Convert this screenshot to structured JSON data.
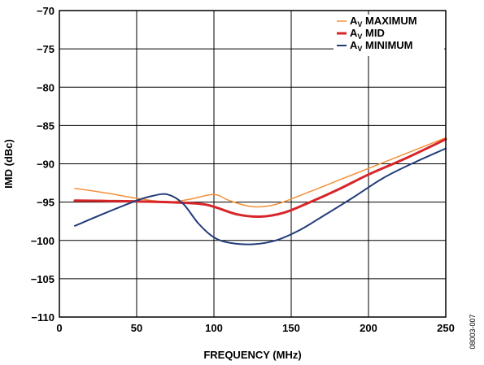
{
  "chart_data": {
    "type": "line",
    "title": "",
    "xlabel": "FREQUENCY (MHz)",
    "ylabel": "IMD (dBc)",
    "xlim": [
      0,
      250
    ],
    "ylim": [
      -110,
      -70
    ],
    "x_ticks": [
      0,
      50,
      100,
      150,
      200,
      250
    ],
    "x_tick_labels": [
      "0",
      "50",
      "100",
      "150",
      "200",
      "250"
    ],
    "y_ticks": [
      -110,
      -105,
      -100,
      -95,
      -90,
      -85,
      -80,
      -75,
      -70
    ],
    "y_tick_labels": [
      "−110",
      "−105",
      "−100",
      "−95",
      "−90",
      "−85",
      "−80",
      "−75",
      "−70"
    ],
    "grid": true,
    "legend_position": "top-right",
    "series": [
      {
        "name": "A",
        "subscript": "V",
        "suffix": " MAXIMUM",
        "color": "#F2913A",
        "width": 1.5,
        "x": [
          10,
          30,
          50,
          70,
          85,
          100,
          110,
          125,
          140,
          160,
          180,
          200,
          225,
          250
        ],
        "y": [
          -93.2,
          -93.8,
          -94.5,
          -95.0,
          -94.6,
          -94.0,
          -94.8,
          -95.6,
          -95.3,
          -93.8,
          -92.2,
          -90.6,
          -88.6,
          -86.6
        ]
      },
      {
        "name": "A",
        "subscript": "V",
        "suffix": " MID",
        "color": "#D7262A",
        "width": 3,
        "x": [
          10,
          30,
          50,
          70,
          90,
          100,
          115,
          130,
          145,
          160,
          180,
          200,
          225,
          250
        ],
        "y": [
          -94.8,
          -94.85,
          -94.9,
          -95.0,
          -95.2,
          -95.6,
          -96.6,
          -96.9,
          -96.4,
          -95.2,
          -93.4,
          -91.4,
          -89.2,
          -86.8
        ]
      },
      {
        "name": "A",
        "subscript": "V",
        "suffix": " MINIMUM",
        "color": "#233C7A",
        "width": 2,
        "x": [
          10,
          30,
          50,
          60,
          70,
          80,
          90,
          100,
          110,
          125,
          140,
          155,
          170,
          190,
          210,
          230,
          250
        ],
        "y": [
          -98.1,
          -96.4,
          -94.8,
          -94.2,
          -94.0,
          -95.2,
          -97.8,
          -99.6,
          -100.3,
          -100.5,
          -100.0,
          -98.7,
          -96.9,
          -94.4,
          -91.8,
          -89.8,
          -88.0
        ]
      }
    ]
  },
  "figure_id": "08003-007"
}
